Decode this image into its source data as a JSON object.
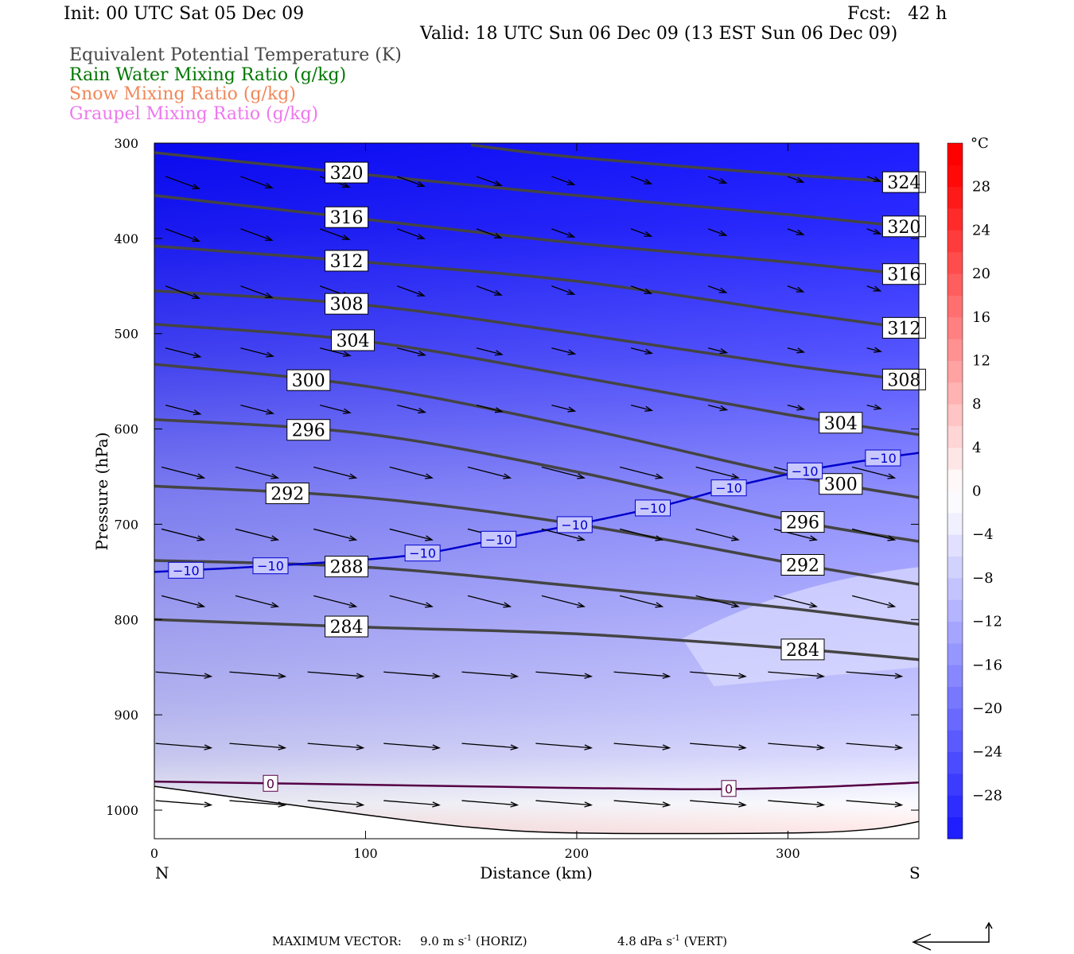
{
  "header": {
    "init": "Init: 00 UTC Sat 05 Dec 09",
    "fcst": "Fcst:   42 h",
    "valid": "Valid: 18 UTC Sun 06 Dec 09 (13 EST Sun 06 Dec 09)"
  },
  "legend": [
    {
      "text": "Equivalent Potential Temperature (K)",
      "color": "#444444"
    },
    {
      "text": "Rain Water Mixing Ratio (g/kg)",
      "color": "#007700"
    },
    {
      "text": "Snow Mixing Ratio (g/kg)",
      "color": "#f0885a"
    },
    {
      "text": "Graupel Mixing Ratio (g/kg)",
      "color": "#ee77ee"
    }
  ],
  "footer": {
    "label": "MAXIMUM VECTOR:",
    "horiz_value": "9.0 m s",
    "horiz_exp": "-1",
    "horiz_tag": "(HORIZ)",
    "vert_value": "4.8 dPa s",
    "vert_exp": "-1",
    "vert_tag": "(VERT)"
  },
  "chart_data": {
    "type": "cross-section",
    "xlabel": "Distance (km)",
    "ylabel": "Pressure (hPa)",
    "xlim": [
      0,
      362
    ],
    "ylim": [
      1030,
      300
    ],
    "x_ticks": [
      0,
      100,
      200,
      300
    ],
    "y_ticks": [
      300,
      400,
      500,
      600,
      700,
      800,
      900,
      1000
    ],
    "end_labels": {
      "left": "N",
      "right": "S"
    },
    "colorbar": {
      "unit": "°C",
      "tick_labels": [
        "28",
        "24",
        "20",
        "16",
        "12",
        "8",
        "4",
        "0",
        "−4",
        "−8",
        "−12",
        "−16",
        "−20",
        "−24",
        "−28"
      ],
      "tick_values": [
        28,
        24,
        20,
        16,
        12,
        8,
        4,
        0,
        -4,
        -8,
        -12,
        -16,
        -20,
        -24,
        -28
      ],
      "range": [
        -32,
        32
      ],
      "colors": [
        "#1e1eff",
        "#2d2dff",
        "#3c3cff",
        "#4b4bff",
        "#5a5aff",
        "#6969ff",
        "#7878ff",
        "#8787ff",
        "#9696ff",
        "#a5a5ff",
        "#b4b4ff",
        "#c3c3ff",
        "#d2d2ff",
        "#e1e1ff",
        "#f0f0ff",
        "#fbfbff",
        "#fff8f8",
        "#ffe6e6",
        "#ffd5d5",
        "#ffc4c4",
        "#ffb3b3",
        "#ffa2a2",
        "#ff9191",
        "#ff8080",
        "#ff6f6f",
        "#ff5e5e",
        "#ff4d4d",
        "#ff3c3c",
        "#ff2b2b",
        "#ff1a1a",
        "#ff0909",
        "#ff0000"
      ]
    },
    "temperature_contours": [
      {
        "value": -10,
        "label": "−10",
        "color": "#0000cc",
        "points": [
          [
            0,
            750
          ],
          [
            60,
            743
          ],
          [
            120,
            733
          ],
          [
            160,
            717
          ],
          [
            200,
            700
          ],
          [
            240,
            681
          ],
          [
            275,
            660
          ],
          [
            310,
            643
          ],
          [
            340,
            632
          ],
          [
            362,
            625
          ]
        ],
        "label_x": [
          15,
          55,
          127,
          163,
          199,
          236,
          272,
          308,
          345
        ]
      },
      {
        "value": 0,
        "label": "0",
        "color": "#550044",
        "points": [
          [
            0,
            970
          ],
          [
            60,
            972
          ],
          [
            150,
            975
          ],
          [
            250,
            978
          ],
          [
            310,
            976
          ],
          [
            362,
            971
          ]
        ],
        "label_x": [
          55,
          272
        ]
      }
    ],
    "theta_e_contours": [
      {
        "value": 284,
        "label": "284",
        "points": [
          [
            0,
            800
          ],
          [
            100,
            808
          ],
          [
            200,
            815
          ],
          [
            300,
            830
          ],
          [
            362,
            842
          ]
        ],
        "label_x": [
          91,
          307
        ]
      },
      {
        "value": 288,
        "label": "288",
        "points": [
          [
            0,
            738
          ],
          [
            100,
            745
          ],
          [
            200,
            765
          ],
          [
            300,
            788
          ],
          [
            362,
            805
          ]
        ],
        "label_x": [
          91
        ]
      },
      {
        "value": 292,
        "label": "292",
        "points": [
          [
            0,
            660
          ],
          [
            100,
            672
          ],
          [
            200,
            700
          ],
          [
            300,
            740
          ],
          [
            362,
            763
          ]
        ],
        "label_x": [
          63,
          307
        ]
      },
      {
        "value": 296,
        "label": "296",
        "points": [
          [
            0,
            590
          ],
          [
            100,
            605
          ],
          [
            200,
            645
          ],
          [
            300,
            695
          ],
          [
            362,
            718
          ]
        ],
        "label_x": [
          73,
          307
        ]
      },
      {
        "value": 300,
        "label": "300",
        "points": [
          [
            0,
            532
          ],
          [
            100,
            555
          ],
          [
            200,
            598
          ],
          [
            300,
            648
          ],
          [
            362,
            672
          ]
        ],
        "label_x": [
          73,
          325
        ]
      },
      {
        "value": 304,
        "label": "304",
        "points": [
          [
            0,
            490
          ],
          [
            100,
            508
          ],
          [
            200,
            545
          ],
          [
            300,
            585
          ],
          [
            362,
            606
          ]
        ],
        "label_x": [
          94,
          325
        ]
      },
      {
        "value": 308,
        "label": "308",
        "points": [
          [
            0,
            455
          ],
          [
            100,
            470
          ],
          [
            200,
            500
          ],
          [
            300,
            533
          ],
          [
            362,
            550
          ]
        ],
        "label_x": [
          91,
          355
        ]
      },
      {
        "value": 312,
        "label": "312",
        "points": [
          [
            0,
            408
          ],
          [
            100,
            425
          ],
          [
            200,
            445
          ],
          [
            300,
            477
          ],
          [
            362,
            496
          ]
        ],
        "label_x": [
          91,
          355
        ]
      },
      {
        "value": 316,
        "label": "316",
        "points": [
          [
            0,
            355
          ],
          [
            100,
            380
          ],
          [
            200,
            405
          ],
          [
            300,
            425
          ],
          [
            362,
            439
          ]
        ],
        "label_x": [
          91,
          355
        ]
      },
      {
        "value": 320,
        "label": "320",
        "points": [
          [
            0,
            310
          ],
          [
            100,
            333
          ],
          [
            200,
            355
          ],
          [
            300,
            375
          ],
          [
            362,
            389
          ]
        ],
        "label_x": [
          91,
          355
        ]
      },
      {
        "value": 324,
        "label": "324",
        "points": [
          [
            150,
            302
          ],
          [
            200,
            315
          ],
          [
            300,
            333
          ],
          [
            362,
            342
          ]
        ],
        "label_x": [
          355
        ]
      }
    ]
  }
}
